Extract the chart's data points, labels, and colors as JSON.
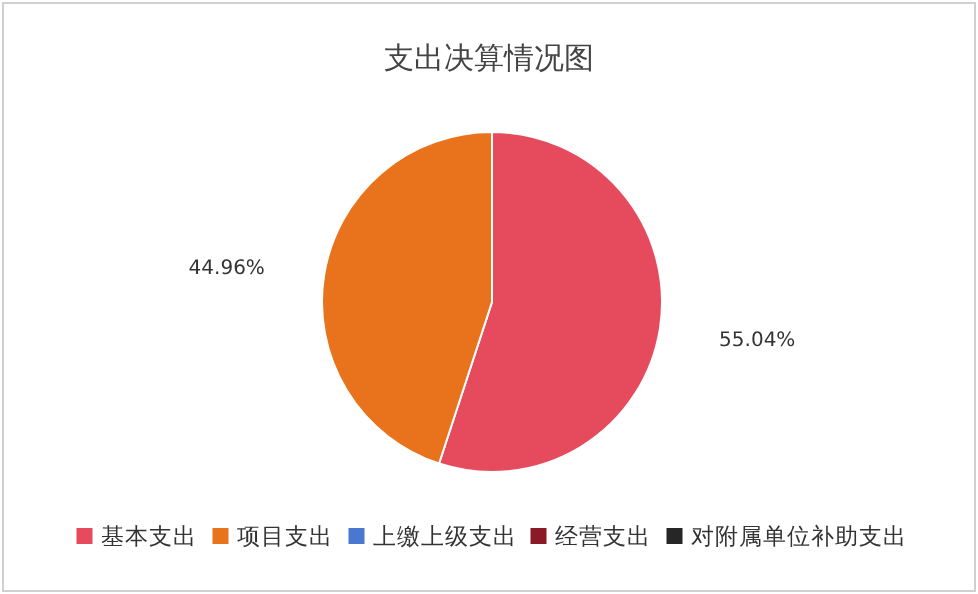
{
  "chart_data": {
    "type": "pie",
    "title": "支出决算情况图",
    "categories": [
      "基本支出",
      "项目支出",
      "上缴上级支出",
      "经营支出",
      "对附属单位补助支出"
    ],
    "values": [
      55.04,
      44.96,
      0,
      0,
      0
    ],
    "colors": [
      "#e64b5d",
      "#e8731c",
      "#4a77d0",
      "#8a1a28",
      "#262626"
    ],
    "value_labels": [
      "55.04%",
      "44.96%",
      null,
      null,
      null
    ],
    "legend": "bottom"
  }
}
